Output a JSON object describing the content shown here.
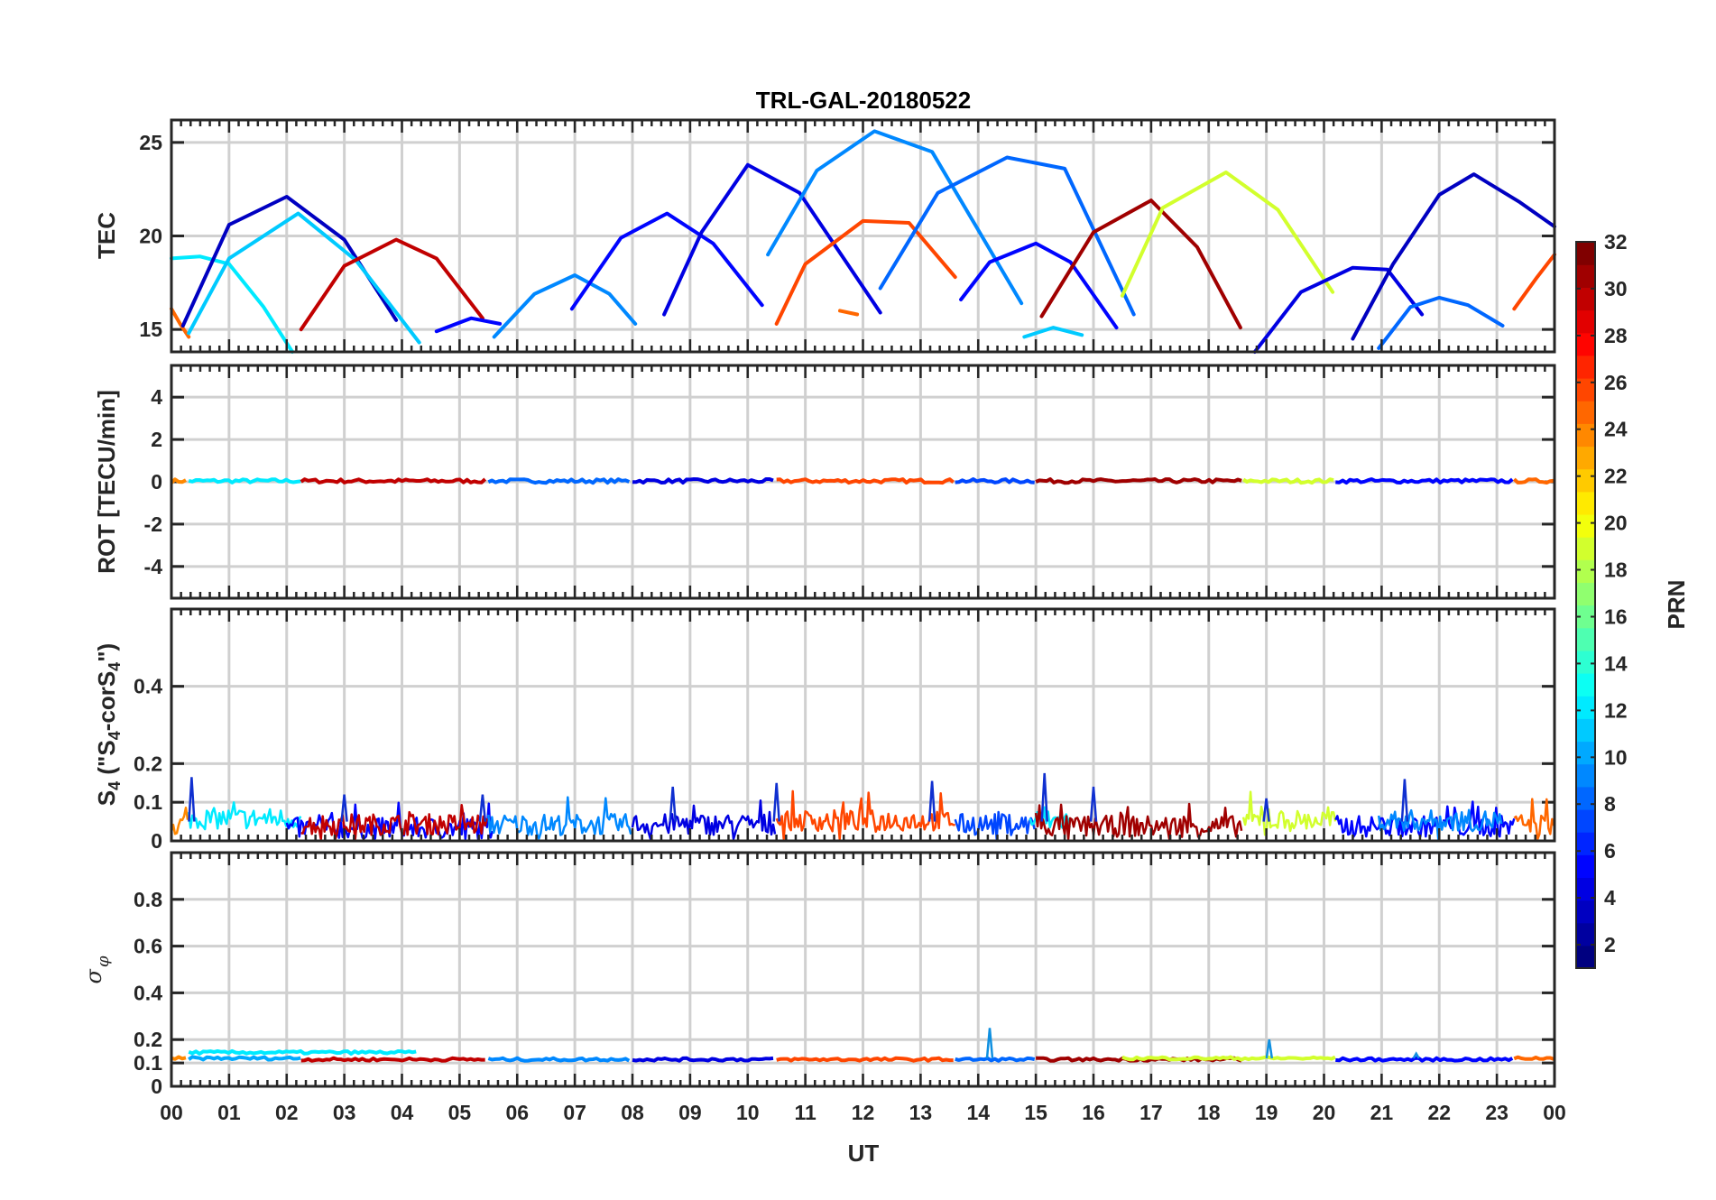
{
  "chart_data": {
    "type": "line",
    "title": "TRL-GAL-20180522",
    "xlabel": "UT",
    "x_range": [
      0,
      24
    ],
    "x_tick_labels": [
      "00",
      "01",
      "02",
      "03",
      "04",
      "05",
      "06",
      "07",
      "08",
      "09",
      "10",
      "11",
      "12",
      "13",
      "14",
      "15",
      "16",
      "17",
      "18",
      "19",
      "20",
      "21",
      "22",
      "23",
      "00"
    ],
    "colorbar": {
      "label": "PRN",
      "range": [
        1,
        32
      ],
      "tick_labels": [
        "2",
        "4",
        "6",
        "8",
        "10",
        "12",
        "14",
        "16",
        "18",
        "20",
        "22",
        "24",
        "26",
        "28",
        "30",
        "32"
      ],
      "colormap": "jet"
    },
    "panels": [
      {
        "id": "tec",
        "ylabel": "TEC",
        "ylim": [
          13.8,
          26.2
        ],
        "y_ticks": [
          15,
          20,
          25
        ],
        "y_tick_labels": [
          "15",
          "20",
          "25"
        ],
        "series": [
          {
            "prn": 25,
            "x": [
              0.0,
              0.15,
              0.3
            ],
            "y": [
              16.1,
              15.3,
              14.6
            ]
          },
          {
            "prn": 12,
            "x": [
              0.0,
              0.5,
              1.0,
              1.6,
              2.1
            ],
            "y": [
              18.8,
              18.9,
              18.5,
              16.2,
              13.8
            ]
          },
          {
            "prn": 3,
            "x": [
              0.2,
              1.0,
              2.0,
              3.0,
              3.9
            ],
            "y": [
              15.2,
              20.6,
              22.1,
              19.8,
              15.5
            ]
          },
          {
            "prn": 11,
            "x": [
              0.3,
              1.0,
              2.2,
              3.2,
              4.3
            ],
            "y": [
              14.8,
              18.8,
              21.2,
              18.7,
              14.3
            ]
          },
          {
            "prn": 30,
            "x": [
              2.25,
              3.0,
              3.9,
              4.6,
              5.4
            ],
            "y": [
              15.0,
              18.4,
              19.8,
              18.8,
              15.6
            ]
          },
          {
            "prn": 5,
            "x": [
              4.6,
              5.2,
              5.7
            ],
            "y": [
              14.9,
              15.6,
              15.3
            ]
          },
          {
            "prn": 9,
            "x": [
              5.6,
              6.3,
              7.0,
              7.6,
              8.05
            ],
            "y": [
              14.6,
              16.9,
              17.9,
              16.9,
              15.3
            ]
          },
          {
            "prn": 5,
            "x": [
              6.95,
              7.8,
              8.6,
              9.4,
              10.25
            ],
            "y": [
              16.1,
              19.9,
              21.2,
              19.6,
              16.3
            ]
          },
          {
            "prn": 4,
            "x": [
              8.55,
              9.2,
              10.0,
              10.9,
              12.3
            ],
            "y": [
              15.8,
              20.2,
              23.8,
              22.3,
              15.9
            ]
          },
          {
            "prn": 9,
            "x": [
              10.35,
              11.2,
              12.2,
              13.2,
              14.75
            ],
            "y": [
              19.0,
              23.5,
              25.6,
              24.5,
              16.4
            ]
          },
          {
            "prn": 26,
            "x": [
              10.5,
              11.0,
              12.0,
              12.8,
              13.6
            ],
            "y": [
              15.3,
              18.5,
              20.8,
              20.7,
              17.8
            ]
          },
          {
            "prn": 25,
            "x": [
              11.6,
              11.9
            ],
            "y": [
              16.0,
              15.8
            ]
          },
          {
            "prn": 8,
            "x": [
              12.3,
              13.3,
              14.5,
              15.5,
              16.7
            ],
            "y": [
              17.2,
              22.3,
              24.2,
              23.6,
              15.8
            ]
          },
          {
            "prn": 5,
            "x": [
              13.7,
              14.2,
              15.0,
              15.6,
              16.4
            ],
            "y": [
              16.6,
              18.6,
              19.6,
              18.6,
              15.1
            ]
          },
          {
            "prn": 11,
            "x": [
              14.8,
              15.3,
              15.8
            ],
            "y": [
              14.6,
              15.1,
              14.7
            ]
          },
          {
            "prn": 31,
            "x": [
              15.1,
              16.0,
              17.0,
              17.8,
              18.55
            ],
            "y": [
              15.7,
              20.2,
              21.9,
              19.4,
              15.1
            ]
          },
          {
            "prn": 19,
            "x": [
              16.5,
              17.2,
              18.3,
              19.2,
              20.15
            ],
            "y": [
              16.8,
              21.5,
              23.4,
              21.4,
              17.0
            ]
          },
          {
            "prn": 4,
            "x": [
              18.8,
              19.6,
              20.5,
              21.1,
              21.7
            ],
            "y": [
              13.8,
              17.0,
              18.3,
              18.2,
              15.8
            ]
          },
          {
            "prn": 8,
            "x": [
              20.95,
              21.5,
              22.0,
              22.5,
              23.1
            ],
            "y": [
              14.0,
              16.2,
              16.7,
              16.3,
              15.2
            ]
          },
          {
            "prn": 3,
            "x": [
              20.5,
              21.2,
              22.0,
              22.6,
              23.4,
              24.0
            ],
            "y": [
              14.5,
              18.5,
              22.2,
              23.3,
              21.8,
              20.5
            ]
          },
          {
            "prn": 26,
            "x": [
              23.3,
              23.7,
              24.0
            ],
            "y": [
              16.1,
              17.8,
              19.0
            ]
          }
        ]
      },
      {
        "id": "rot",
        "ylabel": "ROT [TECU/min]",
        "ylim": [
          -5.5,
          5.5
        ],
        "y_ticks": [
          -4,
          -2,
          0,
          2,
          4
        ],
        "y_tick_labels": [
          "-4",
          "-2",
          "0",
          "2",
          "4"
        ],
        "segments": [
          {
            "prn": 24,
            "x": [
              0.0,
              0.3
            ],
            "level": 0.04
          },
          {
            "prn": 12,
            "x": [
              0.3,
              2.25
            ],
            "level": 0.04
          },
          {
            "prn": 30,
            "x": [
              2.25,
              5.5
            ],
            "level": 0.04
          },
          {
            "prn": 8,
            "x": [
              5.5,
              8.0
            ],
            "level": 0.04
          },
          {
            "prn": 4,
            "x": [
              8.0,
              10.5
            ],
            "level": 0.04
          },
          {
            "prn": 26,
            "x": [
              10.5,
              13.6
            ],
            "level": 0.04
          },
          {
            "prn": 7,
            "x": [
              13.6,
              15.0
            ],
            "level": 0.04
          },
          {
            "prn": 31,
            "x": [
              15.0,
              18.6
            ],
            "level": 0.04
          },
          {
            "prn": 19,
            "x": [
              18.6,
              20.2
            ],
            "level": 0.04
          },
          {
            "prn": 5,
            "x": [
              20.2,
              23.3
            ],
            "level": 0.04
          },
          {
            "prn": 25,
            "x": [
              23.3,
              24.0
            ],
            "level": 0.04
          }
        ]
      },
      {
        "id": "s4",
        "ylabel": "S4 (\"S4-corS4\")",
        "ylabel_parts": {
          "s1": "S",
          "sub1": "4",
          "mid": " (\"S",
          "sub2": "4",
          "mid2": "-corS",
          "sub3": "4",
          "end": "\")"
        },
        "ylim": [
          0,
          0.6
        ],
        "y_ticks": [
          0,
          0.1,
          0.2,
          0.4
        ],
        "y_tick_labels": [
          "0",
          "0.1",
          "0.2",
          "0.4"
        ],
        "segments": [
          {
            "prn": 24,
            "x": [
              0.0,
              0.3
            ],
            "level": 0.04
          },
          {
            "prn": 12,
            "x": [
              0.3,
              2.25
            ],
            "level": 0.055
          },
          {
            "prn": 5,
            "x": [
              2.0,
              5.6
            ],
            "level": 0.03
          },
          {
            "prn": 30,
            "x": [
              2.25,
              5.5
            ],
            "level": 0.04
          },
          {
            "prn": 9,
            "x": [
              5.5,
              8.0
            ],
            "level": 0.04
          },
          {
            "prn": 4,
            "x": [
              8.0,
              10.5
            ],
            "level": 0.04
          },
          {
            "prn": 26,
            "x": [
              10.5,
              13.6
            ],
            "level": 0.05
          },
          {
            "prn": 7,
            "x": [
              13.6,
              15.0
            ],
            "level": 0.04
          },
          {
            "prn": 12,
            "x": [
              14.9,
              15.6
            ],
            "level": 0.05
          },
          {
            "prn": 31,
            "x": [
              15.0,
              18.6
            ],
            "level": 0.035
          },
          {
            "prn": 19,
            "x": [
              18.6,
              20.2
            ],
            "level": 0.05
          },
          {
            "prn": 5,
            "x": [
              20.2,
              23.3
            ],
            "level": 0.035
          },
          {
            "prn": 9,
            "x": [
              20.95,
              23.1
            ],
            "level": 0.05
          },
          {
            "prn": 25,
            "x": [
              23.3,
              24.0
            ],
            "level": 0.04
          }
        ],
        "peaks": [
          {
            "x": 0.35,
            "y": 0.165
          },
          {
            "x": 3.0,
            "y": 0.12
          },
          {
            "x": 5.4,
            "y": 0.12
          },
          {
            "x": 8.7,
            "y": 0.14
          },
          {
            "x": 10.5,
            "y": 0.15
          },
          {
            "x": 13.2,
            "y": 0.155
          },
          {
            "x": 15.15,
            "y": 0.175
          },
          {
            "x": 16.0,
            "y": 0.14
          },
          {
            "x": 19.0,
            "y": 0.11
          },
          {
            "x": 21.4,
            "y": 0.16
          }
        ]
      },
      {
        "id": "sigma_phi",
        "ylabel": "σφ",
        "ylabel_parts": {
          "base": "σ",
          "sub": "φ"
        },
        "ylim": [
          0,
          1.0
        ],
        "y_ticks": [
          0,
          0.1,
          0.2,
          0.4,
          0.6,
          0.8
        ],
        "y_tick_labels": [
          "0",
          "0.1",
          "0.2",
          "0.4",
          "0.6",
          "0.8"
        ],
        "segments": [
          {
            "prn": 24,
            "x": [
              0.0,
              0.3
            ],
            "level": 0.12
          },
          {
            "prn": 12,
            "x": [
              0.3,
              4.3
            ],
            "level": 0.145
          },
          {
            "prn": 10,
            "x": [
              0.3,
              2.3
            ],
            "level": 0.12
          },
          {
            "prn": 30,
            "x": [
              2.25,
              5.5
            ],
            "level": 0.115
          },
          {
            "prn": 9,
            "x": [
              5.5,
              8.0
            ],
            "level": 0.115
          },
          {
            "prn": 4,
            "x": [
              8.0,
              10.5
            ],
            "level": 0.115
          },
          {
            "prn": 26,
            "x": [
              10.5,
              13.6
            ],
            "level": 0.115
          },
          {
            "prn": 8,
            "x": [
              13.6,
              15.0
            ],
            "level": 0.115
          },
          {
            "prn": 31,
            "x": [
              15.0,
              18.6
            ],
            "level": 0.115
          },
          {
            "prn": 19,
            "x": [
              16.5,
              20.2
            ],
            "level": 0.12
          },
          {
            "prn": 5,
            "x": [
              20.2,
              23.3
            ],
            "level": 0.115
          },
          {
            "prn": 25,
            "x": [
              23.3,
              24.0
            ],
            "level": 0.12
          }
        ],
        "peaks": [
          {
            "x": 14.2,
            "y": 0.25
          },
          {
            "x": 19.05,
            "y": 0.2
          },
          {
            "x": 21.6,
            "y": 0.14
          }
        ]
      }
    ]
  }
}
